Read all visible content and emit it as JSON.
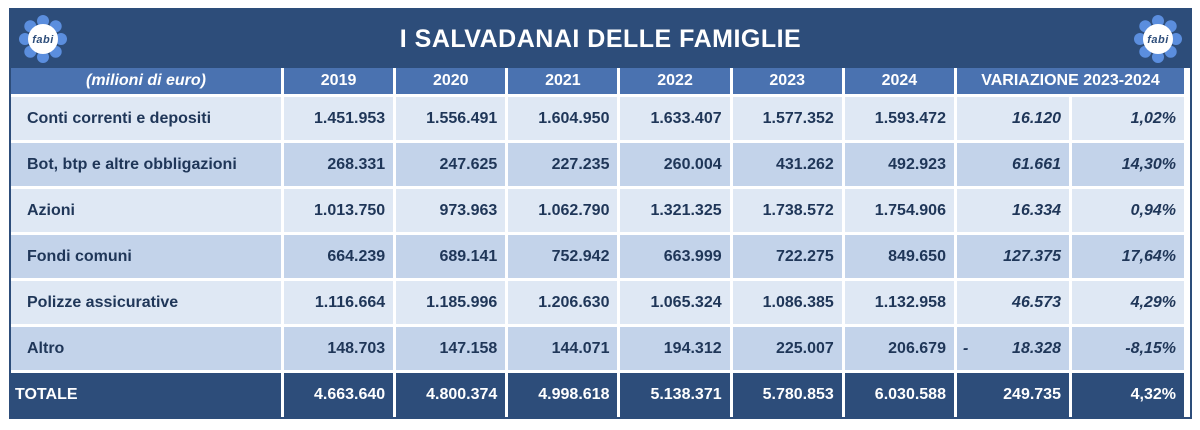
{
  "title": "I SALVADANAI DELLE FAMIGLIE",
  "logo": {
    "text": "fabi",
    "icon": "flower-logo-icon",
    "color": "#5b8ede"
  },
  "header": {
    "unit": "(milioni di euro)",
    "years": [
      "2019",
      "2020",
      "2021",
      "2022",
      "2023",
      "2024"
    ],
    "variation": "VARIAZIONE 2023-2024"
  },
  "rows": [
    {
      "label": "Conti correnti e depositi",
      "values": [
        "1.451.953",
        "1.556.491",
        "1.604.950",
        "1.633.407",
        "1.577.352",
        "1.593.472"
      ],
      "diff": "16.120",
      "diff_sign": "",
      "pct": "1,02%"
    },
    {
      "label": "Bot, btp e altre obbligazioni",
      "values": [
        "268.331",
        "247.625",
        "227.235",
        "260.004",
        "431.262",
        "492.923"
      ],
      "diff": "61.661",
      "diff_sign": "",
      "pct": "14,30%"
    },
    {
      "label": "Azioni",
      "values": [
        "1.013.750",
        "973.963",
        "1.062.790",
        "1.321.325",
        "1.738.572",
        "1.754.906"
      ],
      "diff": "16.334",
      "diff_sign": "",
      "pct": "0,94%"
    },
    {
      "label": "Fondi comuni",
      "values": [
        "664.239",
        "689.141",
        "752.942",
        "663.999",
        "722.275",
        "849.650"
      ],
      "diff": "127.375",
      "diff_sign": "",
      "pct": "17,64%"
    },
    {
      "label": "Polizze assicurative",
      "values": [
        "1.116.664",
        "1.185.996",
        "1.206.630",
        "1.065.324",
        "1.086.385",
        "1.132.958"
      ],
      "diff": "46.573",
      "diff_sign": "",
      "pct": "4,29%"
    },
    {
      "label": "Altro",
      "values": [
        "148.703",
        "147.158",
        "144.071",
        "194.312",
        "225.007",
        "206.679"
      ],
      "diff": "18.328",
      "diff_sign": "-",
      "pct": "-8,15%"
    }
  ],
  "total": {
    "label": "TOTALE",
    "values": [
      "4.663.640",
      "4.800.374",
      "4.998.618",
      "5.138.371",
      "5.780.853",
      "6.030.588"
    ],
    "diff": "249.735",
    "pct": "4,32%"
  },
  "colors": {
    "navy": "#2d4d7a",
    "header_blue": "#4a72b0",
    "row_light": "#dfe8f4",
    "row_dark": "#c3d3ea"
  }
}
